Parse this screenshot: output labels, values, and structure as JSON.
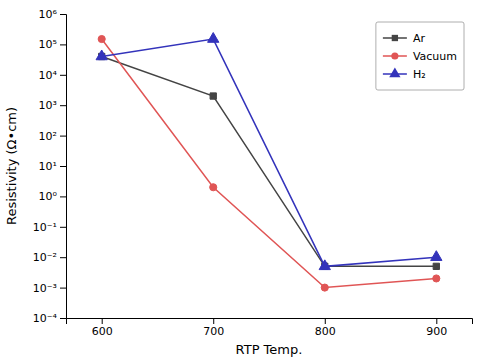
{
  "chart_data": {
    "type": "line",
    "x": [
      600,
      700,
      800,
      900
    ],
    "series": [
      {
        "name": "Ar",
        "color": "#444444",
        "marker": "square",
        "values": [
          40000.0,
          2000.0,
          0.005,
          0.005
        ]
      },
      {
        "name": "Vacuum",
        "color": "#e05555",
        "marker": "circle",
        "values": [
          150000.0,
          2.0,
          0.001,
          0.002
        ]
      },
      {
        "name": "H₂",
        "color": "#3333bb",
        "marker": "triangle",
        "values": [
          40000.0,
          150000.0,
          0.005,
          0.01
        ]
      }
    ],
    "xlabel": "RTP Temp.",
    "ylabel": "Resistivity (Ω•cm)",
    "xlim": [
      568,
      932
    ],
    "xticks": [
      600,
      700,
      800,
      900
    ],
    "ylim": [
      0.0001,
      1000000
    ],
    "yticks": [
      {
        "value": 0.0001,
        "label": "10⁻⁴"
      },
      {
        "value": 0.001,
        "label": "10⁻³"
      },
      {
        "value": 0.01,
        "label": "10⁻²"
      },
      {
        "value": 0.1,
        "label": "10⁻¹"
      },
      {
        "value": 1,
        "label": "10⁰"
      },
      {
        "value": 10,
        "label": "10¹"
      },
      {
        "value": 100,
        "label": "10²"
      },
      {
        "value": 1000,
        "label": "10³"
      },
      {
        "value": 10000,
        "label": "10⁴"
      },
      {
        "value": 100000,
        "label": "10⁵"
      },
      {
        "value": 1000000,
        "label": "10⁶"
      }
    ],
    "log": "y",
    "legend": "upper right"
  }
}
